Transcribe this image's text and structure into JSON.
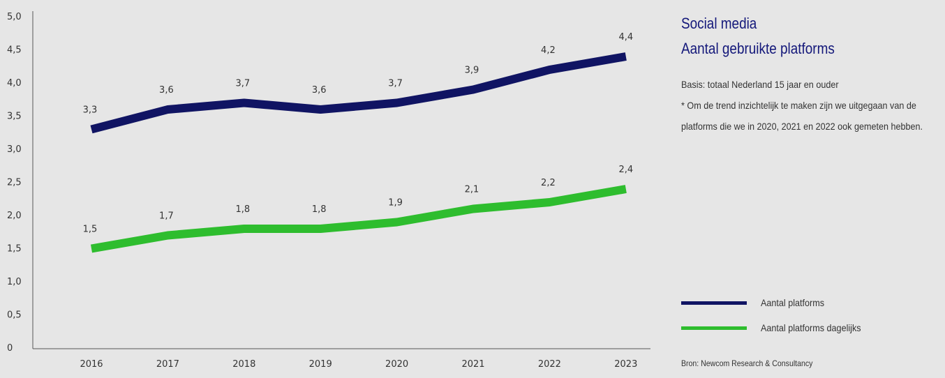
{
  "chart_data": {
    "type": "line",
    "categories": [
      "2016",
      "2017",
      "2018",
      "2019",
      "2020",
      "2021",
      "2022",
      "2023"
    ],
    "series": [
      {
        "name": "Aantal platforms",
        "values": [
          3.3,
          3.6,
          3.7,
          3.6,
          3.7,
          3.9,
          4.2,
          4.4
        ],
        "labels": [
          "3,3",
          "3,6",
          "3,7",
          "3,6",
          "3,7",
          "3,9",
          "4,2",
          "4,4"
        ],
        "color": "#101463"
      },
      {
        "name": "Aantal platforms dagelijks",
        "values": [
          1.5,
          1.7,
          1.8,
          1.8,
          1.9,
          2.1,
          2.2,
          2.4
        ],
        "labels": [
          "1,5",
          "1,7",
          "1,8",
          "1,8",
          "1,9",
          "2,1",
          "2,2",
          "2,4"
        ],
        "color": "#2ebd2e"
      }
    ],
    "ylim": [
      0,
      5
    ],
    "yticks": [
      0,
      0.5,
      1,
      1.5,
      2,
      2.5,
      3,
      3.5,
      4,
      4.5,
      5
    ],
    "ytick_labels": [
      "0",
      "0,5",
      "1,0",
      "1,5",
      "2,0",
      "2,5",
      "3,0",
      "3,5",
      "4,0",
      "4,5",
      "5,0"
    ],
    "grid": false,
    "legend_position": "right",
    "title": "Social media",
    "subtitle": "Aantal gebruikte platforms"
  },
  "notes": [
    "Basis: totaal Nederland 15 jaar en ouder",
    "* Om de trend inzichtelijk te maken zijn we uitgegaan van de",
    "platforms die we in 2020, 2021 en 2022 ook gemeten hebben."
  ],
  "source": "Bron: Newcom Research & Consultancy"
}
